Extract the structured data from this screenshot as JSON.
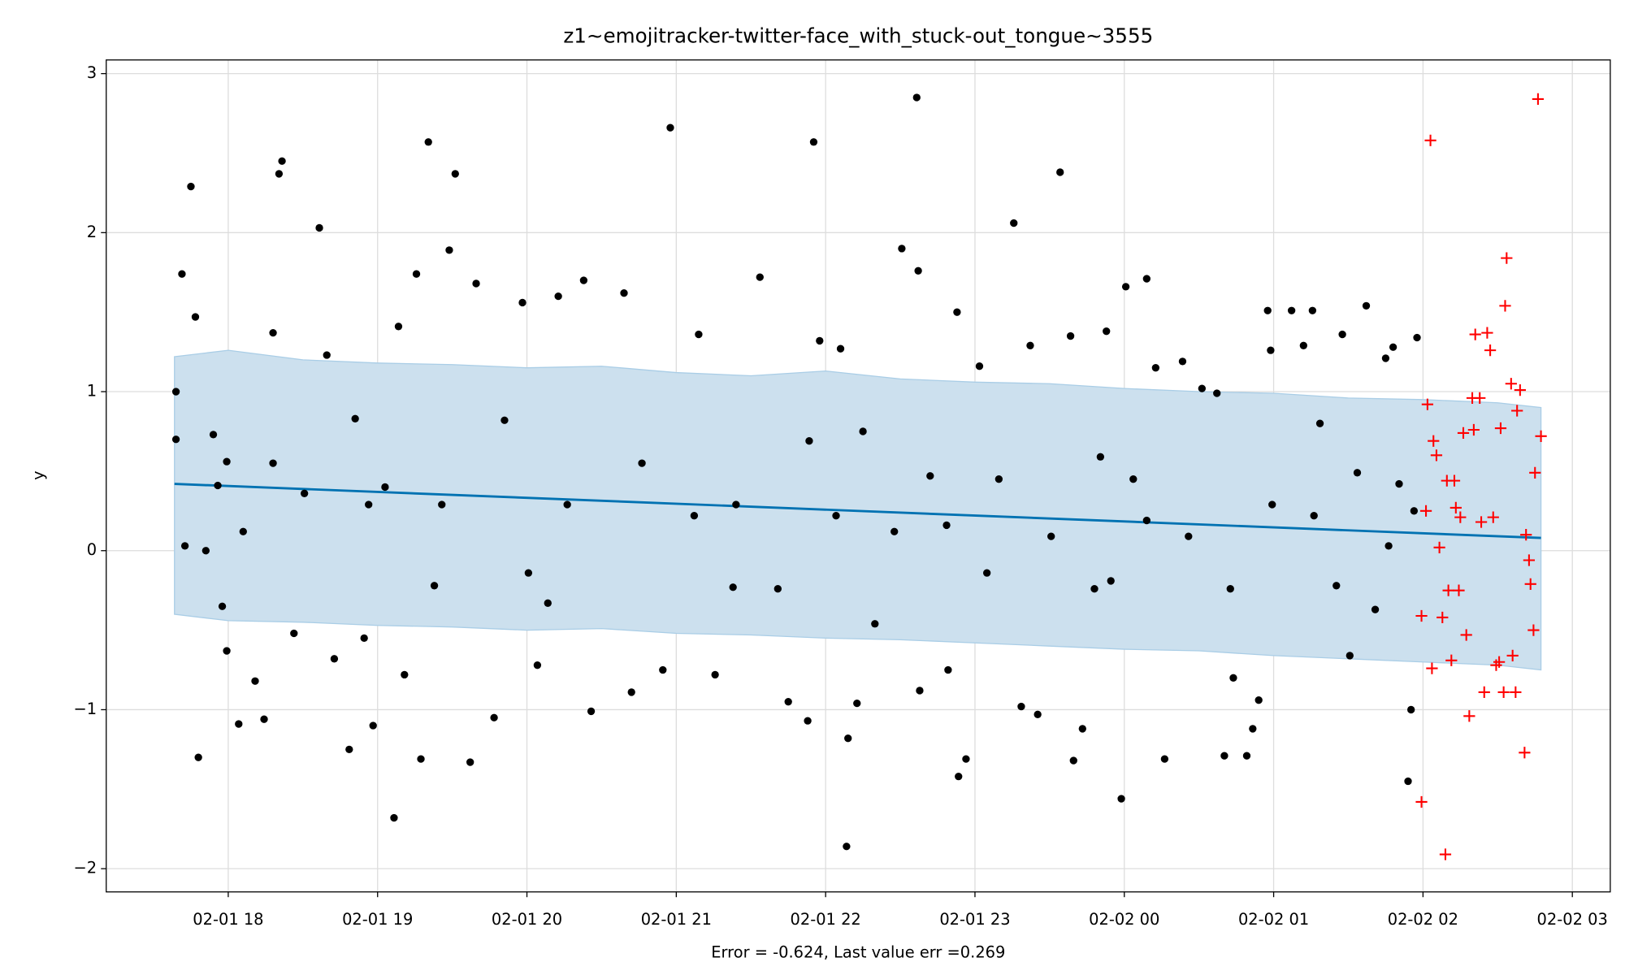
{
  "chart_data": {
    "type": "scatter",
    "title": "z1~emojitracker-twitter-face_with_stuck-out_tongue~3555",
    "x_label": "Error = -0.624, Last value err =0.269",
    "y_label": "y",
    "xlim": [
      17.183,
      27.254
    ],
    "ylim": [
      -2.146,
      3.086
    ],
    "xticks": [
      {
        "value": 18,
        "label": "02-01 18"
      },
      {
        "value": 19,
        "label": "02-01 19"
      },
      {
        "value": 20,
        "label": "02-01 20"
      },
      {
        "value": 21,
        "label": "02-01 21"
      },
      {
        "value": 22,
        "label": "02-01 22"
      },
      {
        "value": 23,
        "label": "02-01 23"
      },
      {
        "value": 24,
        "label": "02-02 00"
      },
      {
        "value": 25,
        "label": "02-02 01"
      },
      {
        "value": 26,
        "label": "02-02 02"
      },
      {
        "value": 27,
        "label": "02-02 03"
      }
    ],
    "yticks": [
      {
        "value": -2,
        "label": "−2"
      },
      {
        "value": -1,
        "label": "−1"
      },
      0,
      1,
      2,
      3
    ],
    "grid": true,
    "band": {
      "color": "#cce0ee",
      "edge_color": "#a9cde6",
      "x": [
        17.64,
        18.0,
        18.5,
        19.0,
        19.5,
        20.0,
        20.5,
        21.0,
        21.5,
        22.0,
        22.5,
        23.0,
        23.5,
        24.0,
        24.5,
        25.0,
        25.5,
        26.0,
        26.5,
        26.79
      ],
      "upper": [
        1.22,
        1.26,
        1.2,
        1.18,
        1.17,
        1.15,
        1.16,
        1.12,
        1.1,
        1.13,
        1.08,
        1.06,
        1.05,
        1.02,
        1.0,
        0.99,
        0.96,
        0.95,
        0.93,
        0.9
      ],
      "lower": [
        -0.4,
        -0.44,
        -0.45,
        -0.47,
        -0.48,
        -0.5,
        -0.49,
        -0.52,
        -0.53,
        -0.55,
        -0.56,
        -0.58,
        -0.6,
        -0.62,
        -0.63,
        -0.66,
        -0.68,
        -0.7,
        -0.72,
        -0.75
      ]
    },
    "trend": {
      "color": "#0072b2",
      "x": [
        17.64,
        26.79
      ],
      "values": [
        0.42,
        0.08
      ]
    },
    "points": {
      "color": "#000000",
      "x": [
        17.65,
        17.65,
        17.69,
        17.71,
        17.75,
        17.78,
        17.8,
        17.85,
        17.9,
        17.93,
        17.96,
        17.99,
        17.99,
        18.07,
        18.1,
        18.18,
        18.24,
        18.3,
        18.34,
        18.36,
        18.44,
        18.51,
        18.61,
        18.66,
        18.71,
        18.81,
        18.85,
        18.91,
        18.97,
        19.05,
        19.11,
        19.14,
        19.18,
        19.26,
        19.29,
        19.34,
        19.38,
        19.48,
        19.52,
        19.62,
        19.66,
        19.78,
        19.97,
        20.01,
        20.07,
        20.14,
        20.21,
        20.38,
        20.43,
        20.65,
        20.7,
        20.91,
        20.96,
        21.15,
        21.26,
        21.38,
        21.56,
        21.75,
        21.88,
        21.92,
        21.96,
        22.07,
        22.1,
        22.14,
        22.15,
        22.21,
        22.33,
        22.51,
        22.61,
        22.62,
        22.63,
        22.7,
        22.82,
        22.88,
        22.89,
        22.94,
        23.03,
        23.08,
        23.26,
        23.31,
        23.37,
        23.42,
        23.57,
        23.64,
        23.66,
        23.72,
        23.84,
        23.88,
        23.91,
        23.98,
        24.01,
        24.06,
        24.15,
        24.21,
        24.27,
        24.39,
        24.52,
        24.62,
        24.67,
        24.73,
        24.82,
        24.86,
        24.9,
        24.96,
        24.98,
        25.12,
        25.2,
        25.26,
        25.31,
        25.42,
        25.46,
        25.51,
        25.62,
        25.68,
        25.75,
        25.8,
        25.84,
        25.9,
        25.92,
        25.96,
        25.94,
        18.3,
        18.94,
        19.43,
        19.85,
        20.27,
        20.77,
        21.12,
        21.4,
        21.68,
        21.89,
        22.25,
        22.46,
        22.81,
        23.16,
        23.51,
        23.8,
        24.15,
        24.43,
        24.71,
        24.99,
        25.27,
        25.56,
        25.77
      ],
      "values": [
        0.7,
        1.0,
        1.74,
        0.03,
        2.29,
        1.47,
        -1.3,
        0.0,
        0.73,
        0.41,
        -0.35,
        -0.63,
        0.56,
        -1.09,
        0.12,
        -0.82,
        -1.06,
        1.37,
        2.37,
        2.45,
        -0.52,
        0.36,
        2.03,
        1.23,
        -0.68,
        -1.25,
        0.83,
        -0.55,
        -1.1,
        0.4,
        -1.68,
        1.41,
        -0.78,
        1.74,
        -1.31,
        2.57,
        -0.22,
        1.89,
        2.37,
        -1.33,
        1.68,
        -1.05,
        1.56,
        -0.14,
        -0.72,
        -0.33,
        1.6,
        1.7,
        -1.01,
        1.62,
        -0.89,
        -0.75,
        2.66,
        1.36,
        -0.78,
        -0.23,
        1.72,
        -0.95,
        -1.07,
        2.57,
        1.32,
        0.22,
        1.27,
        -1.86,
        -1.18,
        -0.96,
        -0.46,
        1.9,
        2.85,
        1.76,
        -0.88,
        0.47,
        -0.75,
        1.5,
        -1.42,
        -1.31,
        1.16,
        -0.14,
        2.06,
        -0.98,
        1.29,
        -1.03,
        2.38,
        1.35,
        -1.32,
        -1.12,
        0.59,
        1.38,
        -0.19,
        -1.56,
        1.66,
        0.45,
        1.71,
        1.15,
        -1.31,
        1.19,
        1.02,
        0.99,
        -1.29,
        -0.8,
        -1.29,
        -1.12,
        -0.94,
        1.51,
        1.26,
        1.51,
        1.29,
        1.51,
        0.8,
        -0.22,
        1.36,
        -0.66,
        1.54,
        -0.37,
        1.21,
        1.28,
        0.42,
        -1.45,
        -1.0,
        1.34,
        0.25,
        0.55,
        0.29,
        0.29,
        0.82,
        0.29,
        0.55,
        0.22,
        0.29,
        -0.24,
        0.69,
        0.75,
        0.12,
        0.16,
        0.45,
        0.09,
        -0.24,
        0.19,
        0.09,
        -0.24,
        0.29,
        0.22,
        0.49,
        0.03
      ]
    },
    "outliers": {
      "color": "#ff0000",
      "marker": "+",
      "x": [
        25.99,
        25.99,
        26.02,
        26.03,
        26.05,
        26.06,
        26.07,
        26.09,
        26.11,
        26.13,
        26.15,
        26.16,
        26.17,
        26.19,
        26.21,
        26.22,
        26.24,
        26.25,
        26.27,
        26.29,
        26.31,
        26.33,
        26.34,
        26.35,
        26.38,
        26.39,
        26.41,
        26.43,
        26.45,
        26.47,
        26.49,
        26.51,
        26.52,
        26.54,
        26.55,
        26.56,
        26.59,
        26.6,
        26.62,
        26.63,
        26.65,
        26.68,
        26.69,
        26.71,
        26.72,
        26.74,
        26.75,
        26.77,
        26.79
      ],
      "values": [
        -1.58,
        -0.41,
        0.25,
        0.92,
        2.58,
        -0.74,
        0.69,
        0.6,
        0.02,
        -0.42,
        -1.91,
        0.44,
        -0.25,
        -0.69,
        0.44,
        0.27,
        -0.25,
        0.21,
        0.74,
        -0.53,
        -1.04,
        0.96,
        0.76,
        1.36,
        0.96,
        0.18,
        -0.89,
        1.37,
        1.26,
        0.21,
        -0.72,
        -0.7,
        0.77,
        -0.89,
        1.54,
        1.84,
        1.05,
        -0.66,
        -0.89,
        0.88,
        1.01,
        -1.27,
        0.1,
        -0.06,
        -0.21,
        -0.5,
        0.49,
        2.84,
        0.72
      ]
    }
  }
}
